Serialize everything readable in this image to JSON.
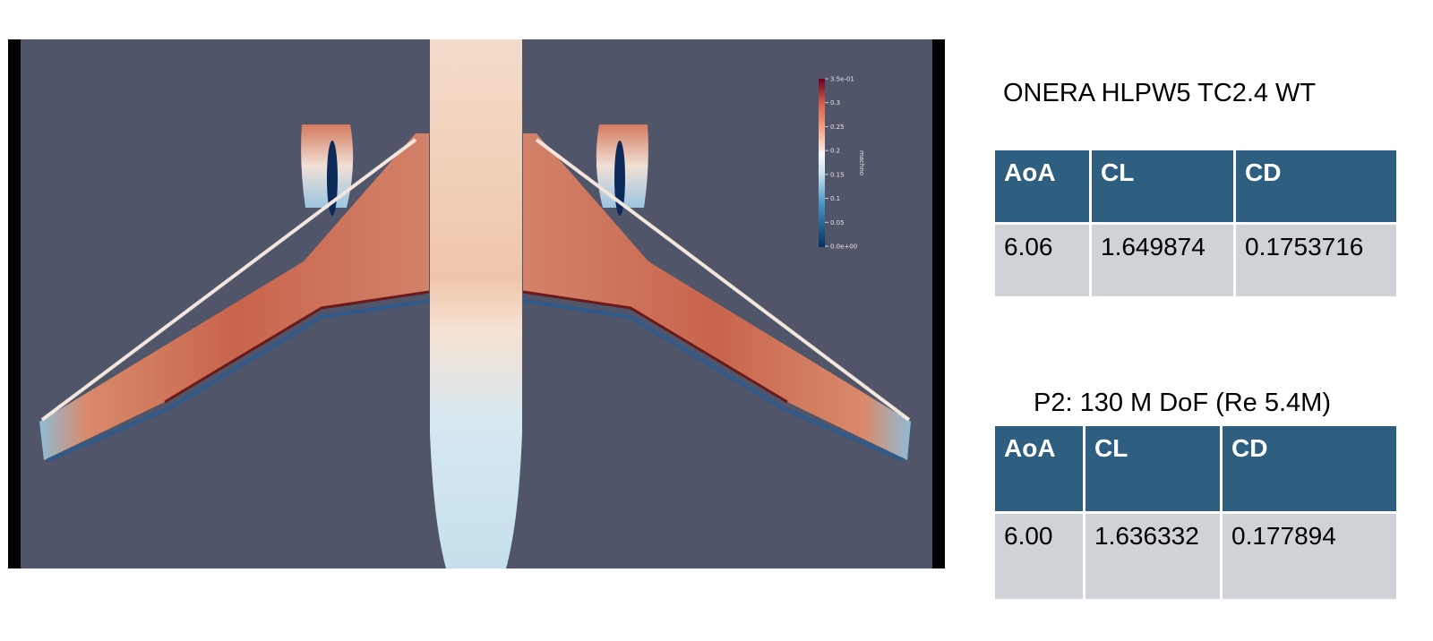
{
  "visualization": {
    "colorbar": {
      "label": "machno",
      "ticks": [
        "3.5e-01",
        "0.3",
        "0.25",
        "0.2",
        "0.15",
        "0.1",
        "0.05",
        "0.0e+00"
      ]
    },
    "colors": {
      "background": "#515569",
      "frame": "#000000",
      "high": "#67001f",
      "low": "#053061"
    }
  },
  "panel1": {
    "title": "ONERA HLPW5 TC2.4 WT",
    "headers": [
      "AoA",
      "CL",
      "CD"
    ],
    "row": [
      "6.06",
      "1.649874",
      "0.1753716"
    ]
  },
  "panel2": {
    "title": "P2: 130 M DoF (Re 5.4M)",
    "headers": [
      "AoA",
      "CL",
      "CD"
    ],
    "row": [
      "6.00",
      "1.636332",
      "0.177894"
    ]
  },
  "colors": {
    "header_bg": "#2e5e80",
    "cell_bg": "#cfd2d7"
  }
}
